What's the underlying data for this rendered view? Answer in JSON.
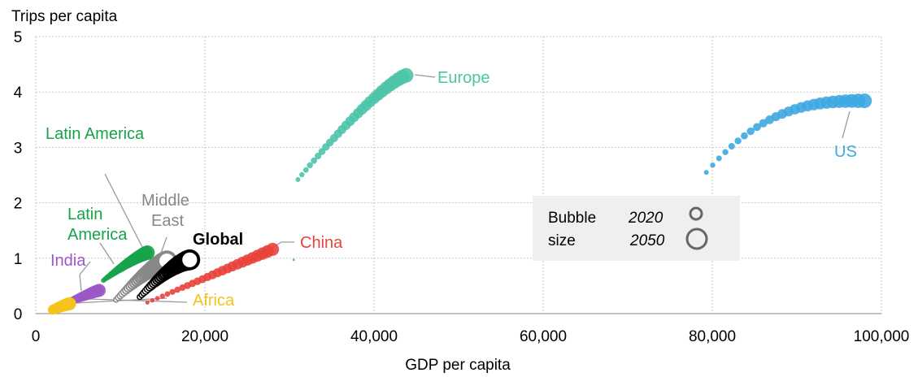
{
  "chart_data": {
    "type": "scatter",
    "xlabel": "GDP per capita",
    "ylabel": "Trips per capita",
    "xlim": [
      0,
      100000
    ],
    "ylim": [
      0,
      5
    ],
    "xticks": [
      "0",
      "20,000",
      "40,000",
      "60,000",
      "80,000",
      "100,000"
    ],
    "yticks": [
      "0",
      "1",
      "2",
      "3",
      "4",
      "5"
    ],
    "grid": "dotted",
    "legend": {
      "title_line1": "Bubble",
      "title_line2": "size",
      "entry_2020": "2020",
      "entry_2050": "2050",
      "placement": "center-right"
    },
    "series": [
      {
        "name": "Europe",
        "color": "#4DC4A8",
        "label": "Europe",
        "start": [
          31000,
          2.42
        ],
        "end": [
          43800,
          4.3
        ],
        "outlier": [
          30500,
          0.97
        ]
      },
      {
        "name": "US",
        "color": "#3FA9E0",
        "label": "US",
        "start": [
          79300,
          2.55
        ],
        "end": [
          98000,
          3.84
        ]
      },
      {
        "name": "China",
        "color": "#E8433A",
        "label": "China",
        "start": [
          13200,
          0.2
        ],
        "end": [
          28000,
          1.16
        ]
      },
      {
        "name": "Latin America",
        "color": "#17A34A",
        "label": "Latin America",
        "label2": "Latin\nAmerica",
        "start": [
          8000,
          0.6
        ],
        "end": [
          13200,
          1.1
        ]
      },
      {
        "name": "Middle East",
        "color": "#888888",
        "label": "Middle\nEast",
        "start": [
          9500,
          0.25
        ],
        "end": [
          15500,
          0.95
        ]
      },
      {
        "name": "Global",
        "color": "#000000",
        "label": "Global",
        "start": [
          12300,
          0.3
        ],
        "end": [
          18200,
          0.97
        ]
      },
      {
        "name": "India",
        "color": "#9B59C6",
        "label": "India",
        "start": [
          3500,
          0.18
        ],
        "end": [
          7500,
          0.42
        ]
      },
      {
        "name": "Africa",
        "color": "#F6C31B",
        "label": "Africa",
        "start": [
          2000,
          0.07
        ],
        "end": [
          4000,
          0.18
        ]
      }
    ]
  }
}
